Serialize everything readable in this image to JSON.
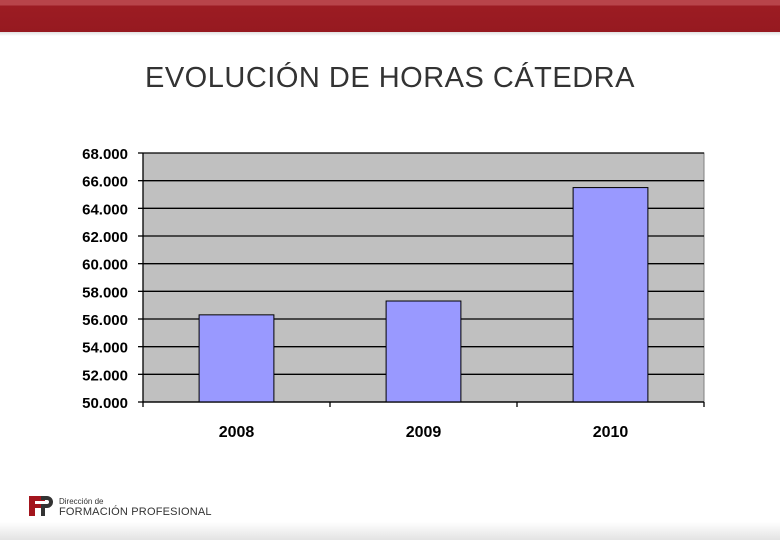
{
  "slide": {
    "title": "EVOLUCIÓN DE HORAS CÁTEDRA"
  },
  "logo": {
    "line1": "Dirección de",
    "line2": "FORMACIÓN PROFESIONAL",
    "icon": "fp-logo-icon",
    "color": "#a3151d"
  },
  "colors": {
    "bar": "#9999ff",
    "plot_bg": "#c0c0c0",
    "header_band": "#9c1c23"
  },
  "chart_data": {
    "type": "bar",
    "categories": [
      "2008",
      "2009",
      "2010"
    ],
    "values": [
      56300,
      57300,
      65500
    ],
    "ylim": [
      50000,
      68000
    ],
    "yticks": [
      50000,
      52000,
      54000,
      56000,
      58000,
      60000,
      62000,
      64000,
      66000,
      68000
    ],
    "ytick_labels": [
      "50.000",
      "52.000",
      "54.000",
      "56.000",
      "58.000",
      "60.000",
      "62.000",
      "64.000",
      "66.000",
      "68.000"
    ],
    "grid": true,
    "legend": "none",
    "title": "",
    "xlabel": "",
    "ylabel": ""
  }
}
